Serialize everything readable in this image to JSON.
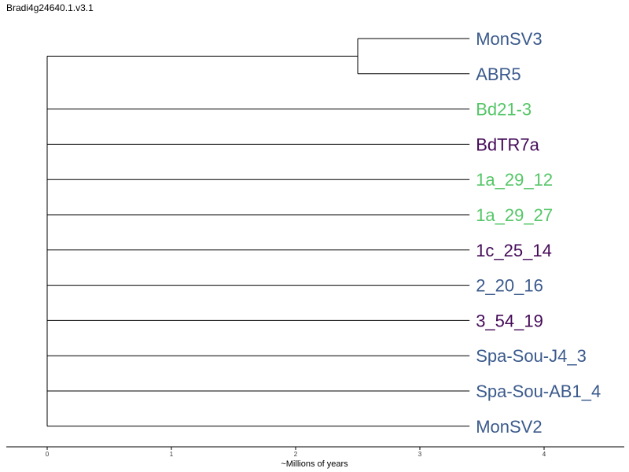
{
  "title": "Bradi4g24640.1.v3.1",
  "axis": {
    "label": "~Millions of years",
    "ticks": [
      0,
      1,
      2,
      3,
      4
    ],
    "range": [
      0,
      4.6
    ]
  },
  "colors": {
    "blue": "#3b5a8c",
    "green": "#55c667",
    "purple": "#440a57"
  },
  "tree": {
    "root_time": 0,
    "clade": {
      "node_time": 2.5,
      "tips": [
        {
          "label": "MonSV3",
          "color": "#3b5a8c"
        },
        {
          "label": "ABR5",
          "color": "#3b5a8c"
        }
      ]
    },
    "tips": [
      {
        "label": "Bd21-3",
        "color": "#55c667"
      },
      {
        "label": "BdTR7a",
        "color": "#440a57"
      },
      {
        "label": "1a_29_12",
        "color": "#55c667"
      },
      {
        "label": "1a_29_27",
        "color": "#55c667"
      },
      {
        "label": "1c_25_14",
        "color": "#440a57"
      },
      {
        "label": "2_20_16",
        "color": "#3b5a8c"
      },
      {
        "label": "3_54_19",
        "color": "#440a57"
      },
      {
        "label": "Spa-Sou-J4_3",
        "color": "#3b5a8c"
      },
      {
        "label": "Spa-Sou-AB1_4",
        "color": "#3b5a8c"
      },
      {
        "label": "MonSV2",
        "color": "#3b5a8c"
      }
    ],
    "tip_time": 3.4
  }
}
